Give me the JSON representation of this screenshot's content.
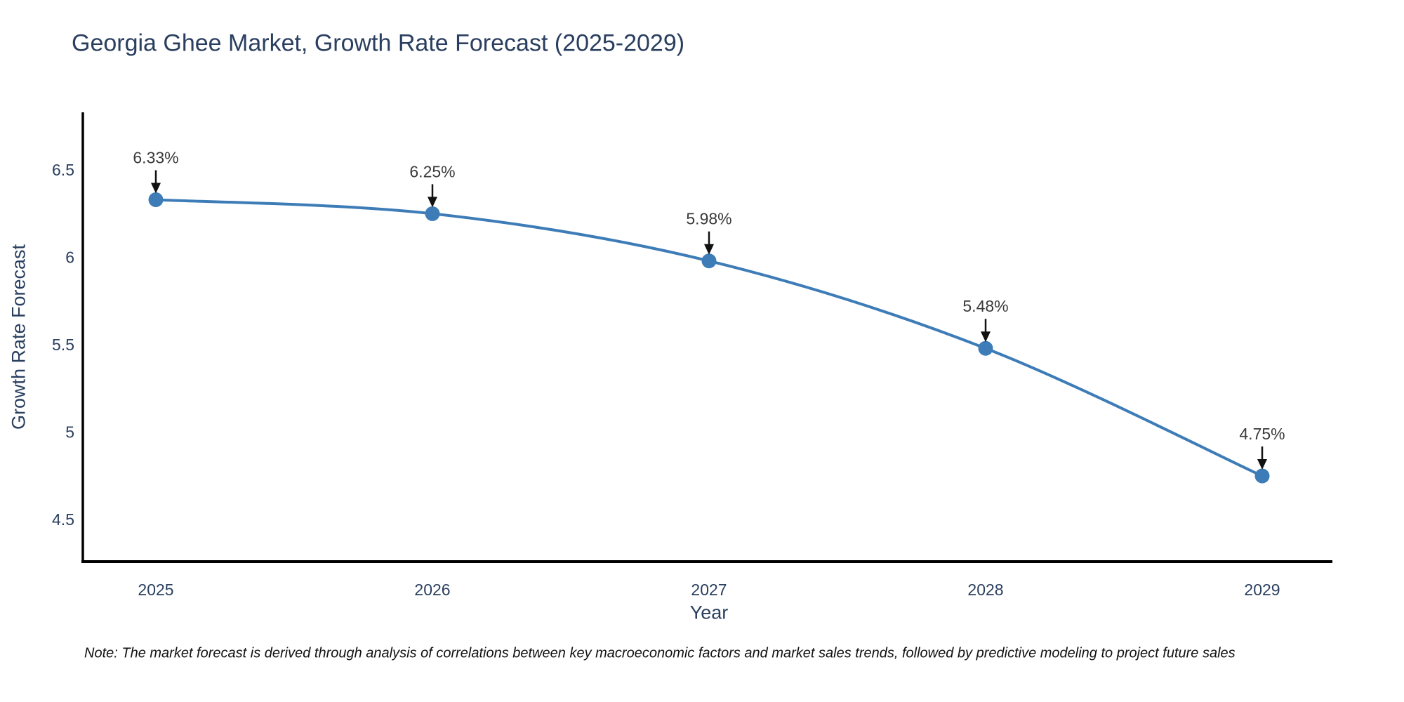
{
  "chart": {
    "title": "Georgia Ghee Market, Growth Rate Forecast (2025-2029)",
    "xlabel": "Year",
    "ylabel": "Growth Rate Forecast",
    "note": "Note: The market forecast is derived through analysis of correlations between key macroeconomic factors and market sales trends, followed by predictive modeling to project future sales",
    "colors": {
      "line": "#3d7cb7",
      "marker": "#3d7cb7",
      "axis": "#000000",
      "tick_text": "#2a3f5f",
      "annotation_text": "#3a3a3a",
      "arrow": "#111111",
      "title_text": "#2a3f5f",
      "note_text": "#111111",
      "background": "#ffffff"
    }
  },
  "chart_data": {
    "type": "line",
    "title": "Georgia Ghee Market, Growth Rate Forecast (2025-2029)",
    "xlabel": "Year",
    "ylabel": "Growth Rate Forecast",
    "x": [
      2025,
      2026,
      2027,
      2028,
      2029
    ],
    "x_tick_labels": [
      "2025",
      "2026",
      "2027",
      "2028",
      "2029"
    ],
    "series": [
      {
        "name": "Growth Rate Forecast",
        "values": [
          6.33,
          6.25,
          5.98,
          5.48,
          4.75
        ],
        "point_labels": [
          "6.33%",
          "6.25%",
          "5.98%",
          "5.48%",
          "4.75%"
        ]
      }
    ],
    "y_ticks": [
      6.5,
      6.0,
      5.5,
      5.0,
      4.5
    ],
    "y_tick_labels": [
      "6.5",
      "6",
      "5.5",
      "5",
      "4.5"
    ],
    "ylim": [
      4.26,
      6.83
    ],
    "grid": false,
    "legend": "none",
    "line_shape": "spline",
    "markers": true,
    "annotations": "percentage value label with downward black arrow above each data point"
  }
}
